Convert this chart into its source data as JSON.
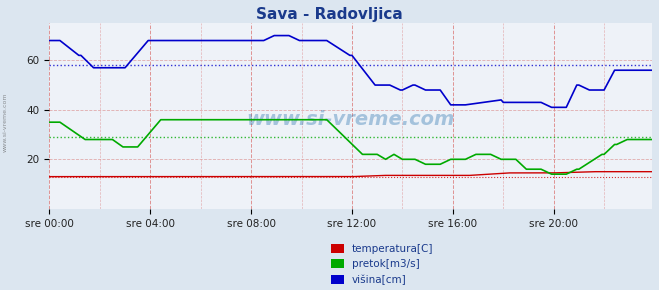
{
  "title": "Sava - Radovljica",
  "title_color": "#1a3a8c",
  "bg_color": "#dce6f0",
  "plot_bg_color": "#eef2f8",
  "yticks": [
    20,
    40,
    60
  ],
  "ylim": [
    0,
    75
  ],
  "xlim": [
    0,
    287
  ],
  "xtick_labels": [
    "sre 00:00",
    "sre 04:00",
    "sre 08:00",
    "sre 12:00",
    "sre 16:00",
    "sre 20:00"
  ],
  "xtick_positions": [
    0,
    48,
    96,
    144,
    192,
    240
  ],
  "ref_line_visina": 58,
  "ref_line_pretok": 29,
  "ref_line_temp": 13,
  "color_temp": "#cc0000",
  "color_pretok": "#00aa00",
  "color_visina": "#0000cc",
  "grid_color_v": "#dd8888",
  "grid_color_h": "#dd9999",
  "watermark": "www.si-vreme.com",
  "legend_labels": [
    "temperatura[C]",
    "pretok[m3/s]",
    "višina[cm]"
  ],
  "legend_colors": [
    "#cc0000",
    "#00aa00",
    "#0000cc"
  ],
  "legend_text_color": "#1a3a8c"
}
